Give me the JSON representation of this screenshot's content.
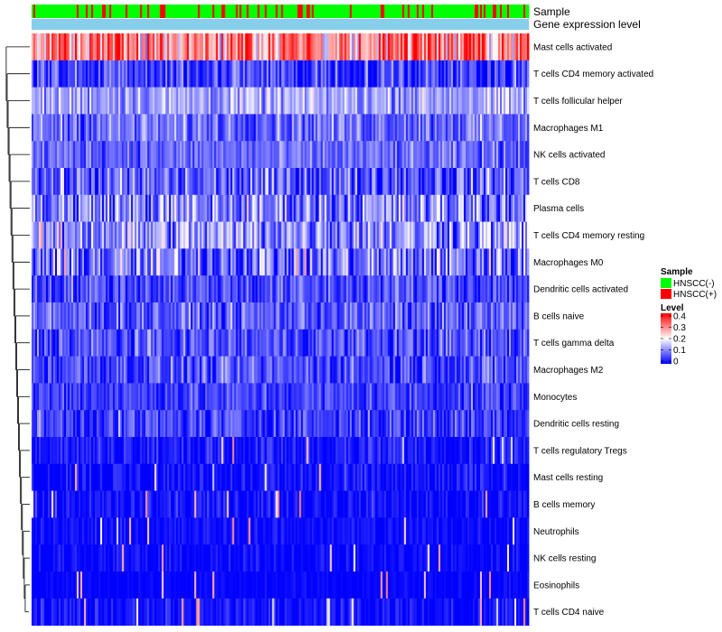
{
  "chart_data": {
    "type": "heatmap",
    "annotations": {
      "sample_label": "Sample",
      "level_label": "Gene expression level"
    },
    "rows": [
      {
        "name": "Mast cells activated",
        "mean": 0.3,
        "spread": 0.1
      },
      {
        "name": "T cells CD4 memory activated",
        "mean": 0.05,
        "spread": 0.06
      },
      {
        "name": "T cells follicular helper",
        "mean": 0.13,
        "spread": 0.05
      },
      {
        "name": "Macrophages M1",
        "mean": 0.09,
        "spread": 0.05
      },
      {
        "name": "NK cells activated",
        "mean": 0.08,
        "spread": 0.04
      },
      {
        "name": "T cells CD8",
        "mean": 0.07,
        "spread": 0.07
      },
      {
        "name": "Plasma cells",
        "mean": 0.1,
        "spread": 0.08
      },
      {
        "name": "T cells CD4 memory resting",
        "mean": 0.12,
        "spread": 0.08
      },
      {
        "name": "Macrophages M0",
        "mean": 0.09,
        "spread": 0.09
      },
      {
        "name": "Dendritic cells activated",
        "mean": 0.06,
        "spread": 0.05
      },
      {
        "name": "B cells naive",
        "mean": 0.07,
        "spread": 0.05
      },
      {
        "name": "T cells gamma delta",
        "mean": 0.06,
        "spread": 0.05
      },
      {
        "name": "Macrophages M2",
        "mean": 0.06,
        "spread": 0.05
      },
      {
        "name": "Monocytes",
        "mean": 0.05,
        "spread": 0.04
      },
      {
        "name": "Dendritic cells resting",
        "mean": 0.05,
        "spread": 0.05
      },
      {
        "name": "T cells regulatory  Tregs",
        "mean": 0.02,
        "spread": 0.03
      },
      {
        "name": "Mast cells resting",
        "mean": 0.01,
        "spread": 0.03
      },
      {
        "name": "B cells memory",
        "mean": 0.01,
        "spread": 0.03
      },
      {
        "name": "Neutrophils",
        "mean": 0.01,
        "spread": 0.02
      },
      {
        "name": "NK cells resting",
        "mean": 0.005,
        "spread": 0.02
      },
      {
        "name": "Eosinophils",
        "mean": 0.003,
        "spread": 0.01
      },
      {
        "name": "T cells CD4 naive",
        "mean": 0.01,
        "spread": 0.03
      }
    ],
    "value_range": [
      0,
      0.4
    ],
    "n_samples": 275,
    "sample_groups": [
      "HNSCC(-)",
      "HNSCC(+)"
    ],
    "legend": {
      "sample": {
        "title": "Sample",
        "entries": [
          {
            "label": "HNSCC(-)",
            "color": "#00ff00"
          },
          {
            "label": "HNSCC(+)",
            "color": "#ff0000"
          }
        ]
      },
      "level": {
        "title": "Level",
        "ticks": [
          "0.4",
          "0.3",
          "0.2",
          "0.1",
          "0"
        ],
        "colors": [
          "#0000ff",
          "#ffffff",
          "#ff0000"
        ]
      }
    },
    "level_bar_color": "#87ceeb"
  }
}
